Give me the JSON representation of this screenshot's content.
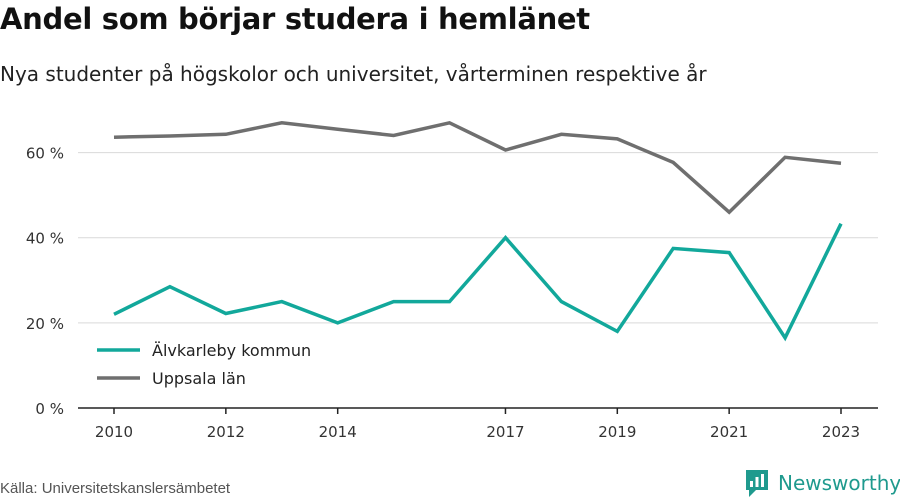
{
  "header": {
    "title": "Andel som börjar studera i hemlänet",
    "subtitle": "Nya studenter på högskolor och universitet, vårterminen respektive år"
  },
  "footer": {
    "source": "Källa: Universitetskanslersämbetet",
    "brand": "Newsworthy"
  },
  "colors": {
    "series_1": "#12a89b",
    "series_2": "#6f6f6f",
    "grid": "#d9d9d9",
    "brand": "#1f9a8e"
  },
  "chart_data": {
    "type": "line",
    "title": "Andel som börjar studera i hemlänet",
    "subtitle": "Nya studenter på högskolor och universitet, vårterminen respektive år",
    "x": [
      2010,
      2011,
      2012,
      2013,
      2014,
      2015,
      2016,
      2017,
      2018,
      2019,
      2020,
      2021,
      2022,
      2023
    ],
    "x_ticks": [
      2010,
      2012,
      2014,
      2017,
      2019,
      2021,
      2023
    ],
    "y_ticks": [
      0,
      20,
      40,
      60
    ],
    "y_tick_labels": [
      "0 %",
      "20 %",
      "40 %",
      "60 %"
    ],
    "ylim": [
      0,
      70
    ],
    "y_unit": "%",
    "grid": true,
    "legend_position": "bottom-left",
    "series": [
      {
        "name": "Älvkarleby kommun",
        "values": [
          22,
          28.5,
          22.2,
          25,
          20,
          25,
          25,
          40,
          25,
          18,
          37.5,
          36.5,
          16.5,
          43.3
        ]
      },
      {
        "name": "Uppsala län",
        "values": [
          63.6,
          63.9,
          64.3,
          67,
          65.5,
          64,
          67,
          60.6,
          64.3,
          63.2,
          57.7,
          46,
          58.9,
          57.5
        ]
      }
    ]
  }
}
